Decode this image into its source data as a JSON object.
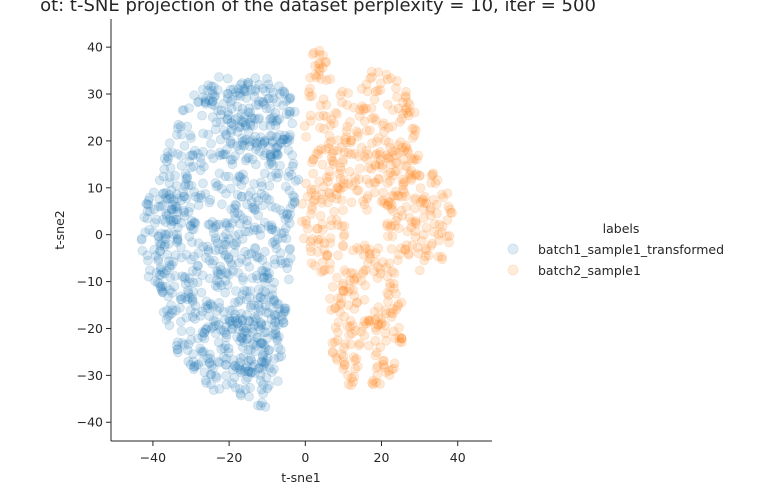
{
  "chart_data": {
    "type": "scatter",
    "title": "ot: t-SNE projection of the dataset perplexity = 10, iter = 500",
    "xlabel": "t-sne1",
    "ylabel": "t-sne2",
    "xlim": [
      -51,
      49
    ],
    "ylim": [
      -44,
      46
    ],
    "xticks": [
      -40,
      -20,
      0,
      20,
      40
    ],
    "yticks": [
      -40,
      -30,
      -20,
      -10,
      0,
      10,
      20,
      30,
      40
    ],
    "grid": false,
    "legend": {
      "title": "labels",
      "placement": "right",
      "entries": [
        "batch1_sample1_transformed",
        "batch2_sample1"
      ]
    },
    "series": [
      {
        "name": "batch1_sample1_transformed",
        "color": "#1f77b4",
        "regions": [
          {
            "center": [
              -20,
              0
            ],
            "radii": [
              20,
              34
            ]
          },
          {
            "center": [
              -10,
              -25
            ],
            "radii": [
              12,
              12
            ]
          },
          {
            "center": [
              -12,
              25
            ],
            "radii": [
              10,
              9
            ]
          },
          {
            "center": [
              -38,
              0
            ],
            "radii": [
              5,
              12
            ]
          }
        ]
      },
      {
        "name": "batch2_sample1",
        "color": "#ff7f0e",
        "regions": [
          {
            "center": [
              18,
              20
            ],
            "radii": [
              12,
              15
            ]
          },
          {
            "center": [
              16,
              -18
            ],
            "radii": [
              10,
              16
            ]
          },
          {
            "center": [
              30,
              3
            ],
            "radii": [
              9,
              11
            ]
          },
          {
            "center": [
              2,
              30
            ],
            "radii": [
              5,
              10
            ]
          },
          {
            "center": [
              5,
              5
            ],
            "radii": [
              6,
              14
            ]
          }
        ]
      }
    ]
  }
}
